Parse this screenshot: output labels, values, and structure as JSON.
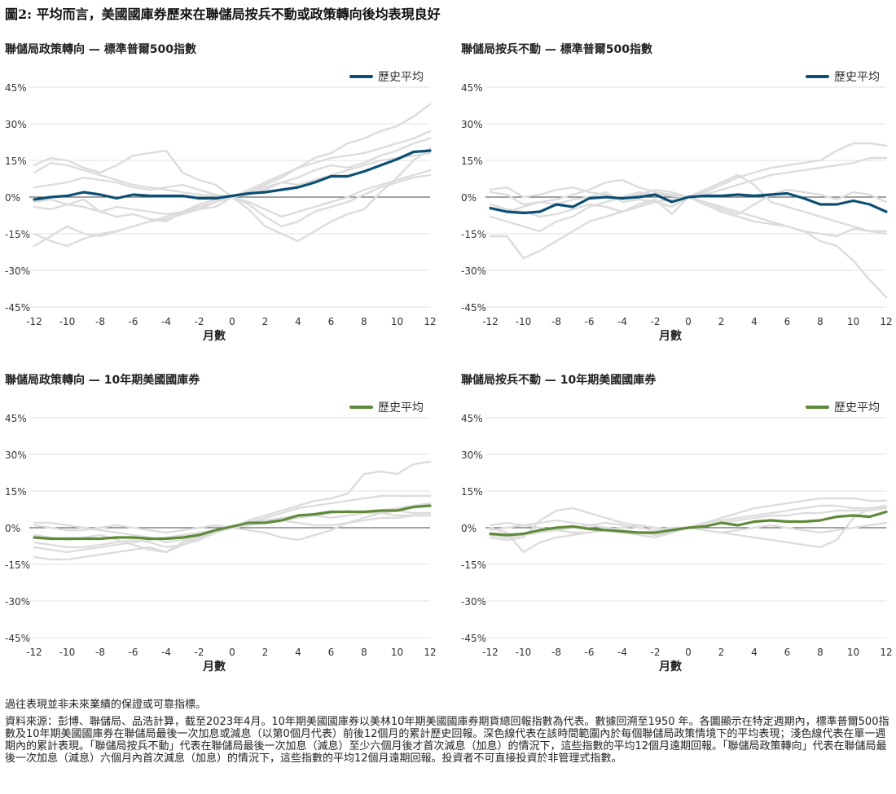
{
  "title": "圖2: 平均而言，美國國庫券歷來在聯儲局按兵不動或政策轉向後均表現良好",
  "footer": {
    "disclaimer": "過往表現並非未來業績的保證或可靠指標。",
    "source": "資料來源：彭博、聯儲局、品浩計算，截至2023年4月。10年期美國國庫券以美林10年期美國國庫券期貨總回報指數為代表。數據回溯至1950 年。各圖顯示在特定週期內，標準普爾500指數及10年期美國國庫券在聯儲局最後一次加息或減息（以第0個月代表）前後12個月的累計歷史回報。深色線代表在該時間範圍內於每個聯儲局政策情境下的平均表現；淺色線代表在單一週期內的累計表現。「聯儲局按兵不動」代表在聯儲局最後一次加息（減息）至少六個月後才首次減息（加息）的情況下，這些指數的平均12個月遠期回報。「聯儲局政策轉向」代表在聯儲局最後一次加息（減息）六個月內首次減息（加息）的情況下，這些指數的平均12個月遠期回報。投資者不可直接投資於非管理式指數。"
  },
  "chart_data": [
    {
      "type": "line",
      "title": "聯儲局政策轉向 — 標準普爾500指數",
      "xlabel": "月數",
      "ylabel": "",
      "x": [
        -12,
        -11,
        -10,
        -9,
        -8,
        -7,
        -6,
        -5,
        -4,
        -3,
        -2,
        -1,
        0,
        1,
        2,
        3,
        4,
        5,
        6,
        7,
        8,
        9,
        10,
        11,
        12
      ],
      "xticks": [
        "-12",
        "-10",
        "-8",
        "-6",
        "-4",
        "-2",
        "0",
        "2",
        "4",
        "6",
        "8",
        "10",
        "12"
      ],
      "yticks": [
        "45%",
        "30%",
        "15%",
        "0%",
        "-15%",
        "-30%",
        "-45%"
      ],
      "ylim": [
        -45,
        45
      ],
      "grid": true,
      "legend_position": "top-right",
      "avg_color": "#0b4f74",
      "series": [
        {
          "name": "歷史平均",
          "kind": "average",
          "values": [
            -1,
            0,
            0.5,
            2,
            1,
            -0.5,
            1,
            0.5,
            0.5,
            0.5,
            -0.5,
            -0.5,
            0.5,
            1.5,
            2,
            3,
            4,
            6,
            8.5,
            8.5,
            10.5,
            13,
            15.5,
            18.5,
            19
          ]
        },
        {
          "name": "",
          "kind": "cycle",
          "values": [
            -2,
            -1,
            -3,
            -4,
            -6,
            -4,
            -5,
            -6,
            -7,
            -6,
            -5,
            -4,
            0,
            2,
            5,
            8,
            12,
            16,
            18,
            22,
            24,
            27,
            29,
            33,
            38
          ]
        },
        {
          "name": "",
          "kind": "cycle",
          "values": [
            13,
            16,
            15,
            12,
            10,
            13,
            17,
            18,
            19,
            10,
            7,
            5,
            0,
            -5,
            -12,
            -15,
            -18,
            -14,
            -10,
            -7,
            -5,
            2,
            8,
            15,
            20
          ]
        },
        {
          "name": "",
          "kind": "cycle",
          "values": [
            -15,
            -18,
            -20,
            -17,
            -15,
            -14,
            -12,
            -10,
            -9,
            -7,
            -5,
            -2,
            0,
            3,
            6,
            9,
            12,
            14,
            16,
            17,
            18,
            20,
            22,
            24,
            27
          ]
        },
        {
          "name": "",
          "kind": "cycle",
          "values": [
            10,
            14,
            13,
            11,
            9,
            7,
            5,
            4,
            3,
            2,
            1,
            0.5,
            0,
            1,
            3,
            6,
            8,
            11,
            13,
            12,
            14,
            17,
            19,
            22,
            24
          ]
        },
        {
          "name": "",
          "kind": "cycle",
          "values": [
            4,
            5,
            6,
            8,
            7,
            6,
            4,
            3,
            4,
            5,
            3,
            1,
            0,
            -2,
            -5,
            -8,
            -6,
            -4,
            -2,
            0,
            3,
            5,
            7,
            9,
            11
          ]
        },
        {
          "name": "",
          "kind": "cycle",
          "values": [
            -20,
            -16,
            -12,
            -15,
            -16,
            -14,
            -12,
            -10,
            -8,
            -6,
            -3,
            -1,
            0,
            -3,
            -8,
            -12,
            -10,
            -6,
            -4,
            -2,
            1,
            4,
            6,
            8,
            9
          ]
        },
        {
          "name": "",
          "kind": "cycle",
          "values": [
            -4,
            -5,
            -3,
            -1,
            -6,
            -8,
            -7,
            -9,
            -10,
            -6,
            -4,
            -2,
            0,
            2,
            4,
            6,
            5,
            7,
            9,
            11,
            13,
            15,
            16,
            17,
            18
          ]
        }
      ]
    },
    {
      "type": "line",
      "title": "聯儲局按兵不動 — 標準普爾500指數",
      "xlabel": "月數",
      "ylabel": "",
      "x": [
        -12,
        -11,
        -10,
        -9,
        -8,
        -7,
        -6,
        -5,
        -4,
        -3,
        -2,
        -1,
        0,
        1,
        2,
        3,
        4,
        5,
        6,
        7,
        8,
        9,
        10,
        11,
        12
      ],
      "xticks": [
        "-12",
        "-10",
        "-8",
        "-6",
        "-4",
        "-2",
        "0",
        "2",
        "4",
        "6",
        "8",
        "10",
        "12"
      ],
      "yticks": [
        "45%",
        "30%",
        "15%",
        "0%",
        "-15%",
        "-30%",
        "-45%"
      ],
      "ylim": [
        -45,
        45
      ],
      "grid": true,
      "legend_position": "top-right",
      "avg_color": "#0b4f74",
      "series": [
        {
          "name": "歷史平均",
          "kind": "average",
          "values": [
            -4.5,
            -6,
            -6.5,
            -6,
            -3,
            -4,
            -0.5,
            0,
            -0.5,
            0,
            1,
            -2,
            0,
            0.5,
            0.5,
            1,
            0.5,
            1,
            1.5,
            -0.5,
            -3,
            -3,
            -1.5,
            -3,
            -6
          ]
        },
        {
          "name": "",
          "kind": "cycle",
          "values": [
            -16,
            -16,
            -25,
            -22,
            -18,
            -14,
            -10,
            -8,
            -6,
            -4,
            -2,
            -1,
            0,
            -2,
            -4,
            -6,
            -8,
            -10,
            -12,
            -14,
            -18,
            -20,
            -26,
            -34,
            -41
          ]
        },
        {
          "name": "",
          "kind": "cycle",
          "values": [
            2,
            1,
            -3,
            -2,
            -1,
            1,
            3,
            6,
            7,
            4,
            2,
            1,
            0,
            2,
            5,
            8,
            10,
            12,
            13,
            14,
            15,
            19,
            22,
            22,
            21
          ]
        },
        {
          "name": "",
          "kind": "cycle",
          "values": [
            -8,
            -10,
            -12,
            -14,
            -10,
            -8,
            -4,
            -2,
            0,
            2,
            1,
            0.5,
            0,
            -3,
            -6,
            -8,
            -10,
            -11,
            -12,
            -14,
            -15,
            -16,
            -13,
            -14,
            -15
          ]
        },
        {
          "name": "",
          "kind": "cycle",
          "values": [
            3,
            4,
            0,
            1,
            3,
            4,
            2,
            1,
            -1,
            1,
            3,
            2,
            0,
            1,
            3,
            5,
            7,
            9,
            10,
            11,
            12,
            13,
            14,
            16,
            16
          ]
        },
        {
          "name": "",
          "kind": "cycle",
          "values": [
            -3,
            -5,
            -6,
            -8,
            -7,
            -5,
            -3,
            -4,
            -6,
            -3,
            -1,
            -7,
            0,
            -2,
            -5,
            -7,
            -3,
            1,
            3,
            2,
            1,
            -1,
            2,
            1,
            -2
          ]
        },
        {
          "name": "",
          "kind": "cycle",
          "values": [
            -5,
            -6,
            -4,
            -2,
            -3,
            -1,
            0,
            2,
            -2,
            -1,
            -2,
            -4,
            0,
            3,
            6,
            9,
            5,
            -2,
            -4,
            -6,
            -8,
            -10,
            -12,
            -14,
            -14
          ]
        }
      ]
    },
    {
      "type": "line",
      "title": "聯儲局政策轉向 — 10年期美國國庫券",
      "xlabel": "月數",
      "ylabel": "",
      "x": [
        -12,
        -11,
        -10,
        -9,
        -8,
        -7,
        -6,
        -5,
        -4,
        -3,
        -2,
        -1,
        0,
        1,
        2,
        3,
        4,
        5,
        6,
        7,
        8,
        9,
        10,
        11,
        12
      ],
      "xticks": [
        "-12",
        "-10",
        "-8",
        "-6",
        "-4",
        "-2",
        "0",
        "2",
        "4",
        "6",
        "8",
        "10",
        "12"
      ],
      "yticks": [
        "45%",
        "30%",
        "15%",
        "0%",
        "-15%",
        "-30%",
        "-45%"
      ],
      "ylim": [
        -45,
        45
      ],
      "grid": true,
      "legend_position": "top-right",
      "avg_color": "#5f8a3a",
      "series": [
        {
          "name": "歷史平均",
          "kind": "average",
          "values": [
            -4,
            -4.5,
            -4.5,
            -4.5,
            -4.5,
            -4,
            -4,
            -4.5,
            -4.5,
            -4,
            -3,
            -1,
            0.5,
            2,
            2,
            3,
            5,
            5.5,
            6.5,
            6.5,
            6.5,
            7,
            7,
            8.5,
            9
          ]
        },
        {
          "name": "",
          "kind": "cycle",
          "values": [
            -12,
            -13,
            -13,
            -12,
            -11,
            -10,
            -9,
            -8,
            -10,
            -7,
            -4,
            -2,
            0,
            3,
            5,
            7,
            9,
            11,
            12,
            14,
            22,
            23,
            22,
            26,
            27
          ]
        },
        {
          "name": "",
          "kind": "cycle",
          "values": [
            -8,
            -9,
            -10,
            -9,
            -8,
            -7,
            -6,
            -5,
            -4,
            -3,
            -2,
            -1,
            0,
            2,
            4,
            6,
            8,
            9,
            10,
            11,
            12,
            13,
            13,
            13,
            13
          ]
        },
        {
          "name": "",
          "kind": "cycle",
          "values": [
            2,
            2,
            1,
            0,
            -1,
            -2,
            -3,
            -4,
            -6,
            -5,
            -3,
            -1,
            0,
            1,
            2,
            3,
            4,
            5,
            6,
            7,
            6,
            7,
            8,
            9,
            10
          ]
        },
        {
          "name": "",
          "kind": "cycle",
          "values": [
            -3,
            -4,
            -5,
            -4,
            -3,
            -5,
            -7,
            -9,
            -10,
            -6,
            -3,
            -1,
            0,
            -1,
            -2,
            -4,
            -5,
            -3,
            -1,
            2,
            4,
            6,
            7,
            6,
            6
          ]
        },
        {
          "name": "",
          "kind": "cycle",
          "values": [
            1,
            0,
            -1,
            -1,
            0,
            1,
            0,
            -1,
            -2,
            -1,
            0,
            1,
            0,
            2,
            3,
            4,
            5,
            5,
            4,
            5,
            6,
            6,
            5,
            5,
            5
          ]
        },
        {
          "name": "",
          "kind": "cycle",
          "values": [
            -6,
            -7,
            -8,
            -8,
            -7,
            -6,
            -5,
            -6,
            -8,
            -7,
            -5,
            -2,
            0,
            2,
            3,
            3,
            2,
            1,
            1,
            2,
            3,
            4,
            4,
            5,
            5
          ]
        }
      ]
    },
    {
      "type": "line",
      "title": "聯儲局按兵不動 — 10年期美國國庫券",
      "xlabel": "月數",
      "ylabel": "",
      "x": [
        -12,
        -11,
        -10,
        -9,
        -8,
        -7,
        -6,
        -5,
        -4,
        -3,
        -2,
        -1,
        0,
        1,
        2,
        3,
        4,
        5,
        6,
        7,
        8,
        9,
        10,
        11,
        12
      ],
      "xticks": [
        "-12",
        "-10",
        "-8",
        "-6",
        "-4",
        "-2",
        "0",
        "2",
        "4",
        "6",
        "8",
        "10",
        "12"
      ],
      "yticks": [
        "45%",
        "30%",
        "15%",
        "0%",
        "-15%",
        "-30%",
        "-45%"
      ],
      "ylim": [
        -45,
        45
      ],
      "grid": true,
      "legend_position": "top-right",
      "avg_color": "#5f8a3a",
      "series": [
        {
          "name": "歷史平均",
          "kind": "average",
          "values": [
            -2.5,
            -3,
            -2.5,
            -1,
            0,
            0.5,
            -0.5,
            -1,
            -1.5,
            -2,
            -2,
            -1,
            0,
            0.5,
            2,
            1,
            2.5,
            3,
            2.5,
            2.5,
            3,
            4.5,
            5,
            4.5,
            6.5
          ]
        },
        {
          "name": "",
          "kind": "cycle",
          "values": [
            0,
            -2,
            -10,
            -6,
            -4,
            -3,
            -2,
            -1,
            -2,
            -3,
            -4,
            -2,
            0,
            2,
            4,
            6,
            8,
            9,
            10,
            11,
            12,
            12,
            12,
            11,
            11
          ]
        },
        {
          "name": "",
          "kind": "cycle",
          "values": [
            -4,
            -5,
            -4,
            3,
            7,
            8,
            6,
            4,
            2,
            1,
            0,
            -1,
            0,
            1,
            2,
            3,
            4,
            5,
            5,
            6,
            6,
            7,
            7,
            7,
            8
          ]
        },
        {
          "name": "",
          "kind": "cycle",
          "values": [
            1,
            2,
            1,
            0,
            -1,
            -2,
            -2,
            -1,
            0,
            1,
            0,
            -1,
            0,
            -1,
            -2,
            -3,
            -4,
            -5,
            -6,
            -7,
            -8,
            -5,
            4,
            8,
            9
          ]
        },
        {
          "name": "",
          "kind": "cycle",
          "values": [
            -1,
            0,
            1,
            2,
            3,
            2,
            1,
            0,
            -1,
            -2,
            -3,
            -2,
            0,
            2,
            3,
            4,
            5,
            6,
            7,
            8,
            9,
            9,
            8,
            8,
            8
          ]
        },
        {
          "name": "",
          "kind": "cycle",
          "values": [
            -3,
            -4,
            -3,
            -2,
            -1,
            0,
            1,
            2,
            1,
            0,
            -1,
            0,
            0,
            -1,
            -2,
            -1,
            0,
            1,
            0,
            -1,
            -2,
            -1,
            0,
            1,
            2
          ]
        }
      ]
    }
  ]
}
